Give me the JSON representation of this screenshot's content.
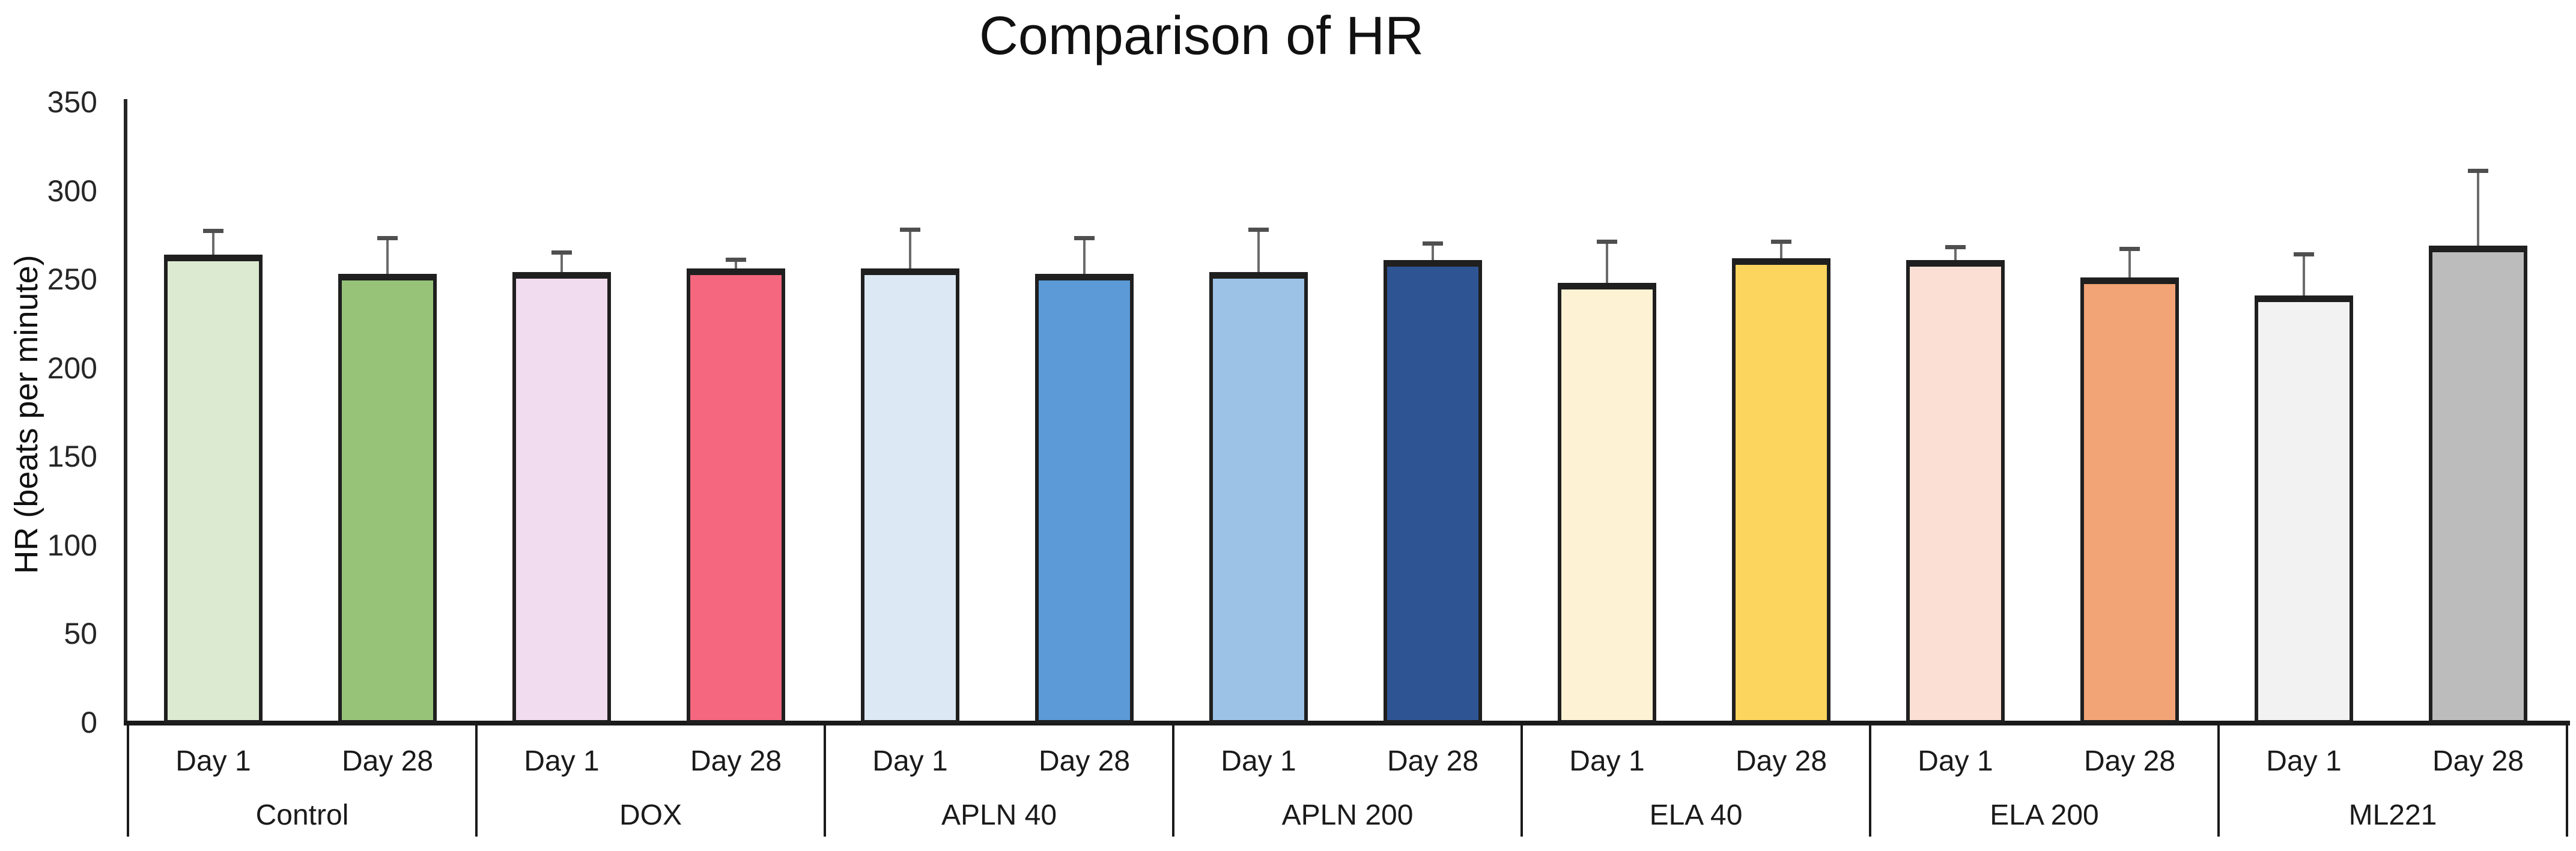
{
  "title": "Comparison of HR",
  "y_axis": {
    "label": "HR (beats per minute)",
    "ticks": [
      350,
      300,
      250,
      200,
      150,
      100,
      50,
      0
    ]
  },
  "chart_data": {
    "type": "bar",
    "title": "Comparison of HR",
    "xlabel": "",
    "ylabel": "HR (beats per minute)",
    "ylim": [
      0,
      350
    ],
    "ytick_step": 50,
    "grid": false,
    "legend": "none",
    "error_bars": "upper only",
    "categories": [
      "Control",
      "DOX",
      "APLN 40",
      "APLN 200",
      "ELA 40",
      "ELA 200",
      "ML221"
    ],
    "series_labels": [
      "Day 1",
      "Day 28"
    ],
    "groups": [
      {
        "label": "Control",
        "bars": [
          {
            "day": "Day 1",
            "value": 264,
            "error": 13,
            "color": "#dcead2"
          },
          {
            "day": "Day 28",
            "value": 253,
            "error": 20,
            "color": "#97c379"
          }
        ]
      },
      {
        "label": "DOX",
        "bars": [
          {
            "day": "Day 1",
            "value": 254,
            "error": 11,
            "color": "#f0dcee"
          },
          {
            "day": "Day 28",
            "value": 256,
            "error": 5,
            "color": "#f4677f"
          }
        ]
      },
      {
        "label": "APLN 40",
        "bars": [
          {
            "day": "Day 1",
            "value": 256,
            "error": 22,
            "color": "#dce8f4"
          },
          {
            "day": "Day 28",
            "value": 253,
            "error": 20,
            "color": "#5b9ad6"
          }
        ]
      },
      {
        "label": "APLN 200",
        "bars": [
          {
            "day": "Day 1",
            "value": 254,
            "error": 24,
            "color": "#9cc3e5"
          },
          {
            "day": "Day 28",
            "value": 261,
            "error": 9,
            "color": "#2e5494"
          }
        ]
      },
      {
        "label": "ELA 40",
        "bars": [
          {
            "day": "Day 1",
            "value": 248,
            "error": 23,
            "color": "#fdf2d4"
          },
          {
            "day": "Day 28",
            "value": 262,
            "error": 9,
            "color": "#fbd55e"
          }
        ]
      },
      {
        "label": "ELA 200",
        "bars": [
          {
            "day": "Day 1",
            "value": 261,
            "error": 7,
            "color": "#fbdfd4"
          },
          {
            "day": "Day 28",
            "value": 251,
            "error": 16,
            "color": "#f2a476"
          }
        ]
      },
      {
        "label": "ML221",
        "bars": [
          {
            "day": "Day 1",
            "value": 241,
            "error": 23,
            "color": "#f2f2f2"
          },
          {
            "day": "Day 28",
            "value": 269,
            "error": 42,
            "color": "#bcbcbc"
          }
        ]
      }
    ]
  },
  "style": {
    "bar_outline": "#1f1f1f",
    "error_bar_color": "#6b6b6b",
    "error_cap_color": "#4f4f4f",
    "axis_color": "#262626",
    "text_color": "#1a1a1a",
    "background": "#ffffff"
  }
}
